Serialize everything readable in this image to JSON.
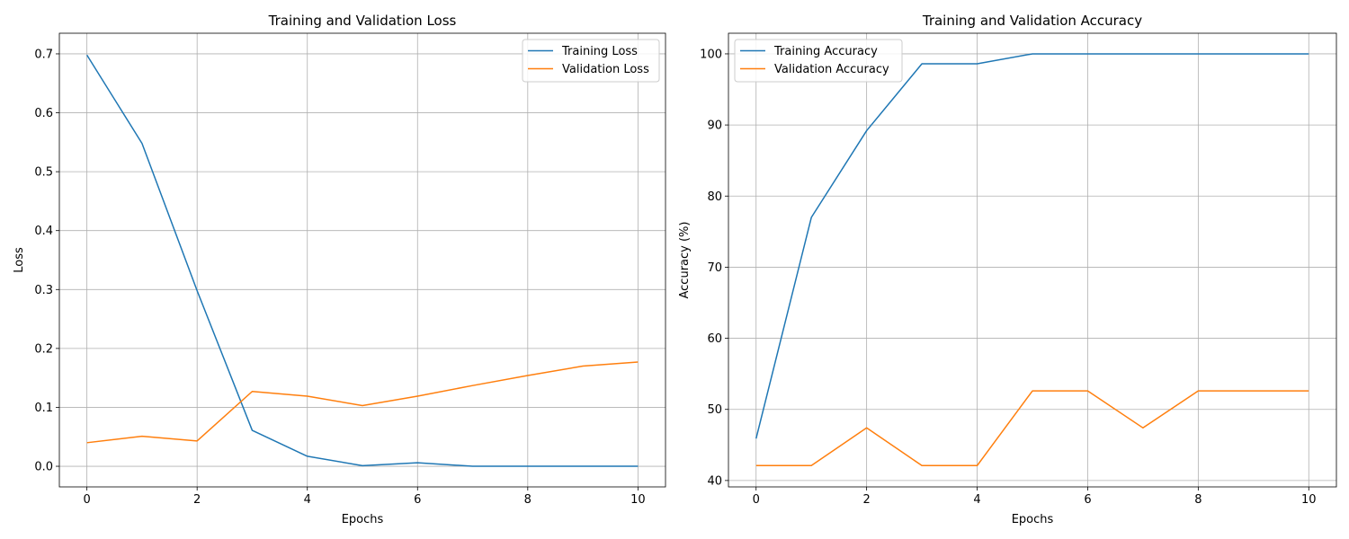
{
  "chart_data": [
    {
      "type": "line",
      "title": "Training and Validation Loss",
      "xlabel": "Epochs",
      "ylabel": "Loss",
      "xlim": [
        -0.5,
        10.5
      ],
      "ylim": [
        -0.035,
        0.735
      ],
      "xticks": [
        0,
        2,
        4,
        6,
        8,
        10
      ],
      "xtick_labels": [
        "0",
        "2",
        "4",
        "6",
        "8",
        "10"
      ],
      "yticks": [
        0.0,
        0.1,
        0.2,
        0.3,
        0.4,
        0.5,
        0.6,
        0.7
      ],
      "ytick_labels": [
        "0.0",
        "0.1",
        "0.2",
        "0.3",
        "0.4",
        "0.5",
        "0.6",
        "0.7"
      ],
      "grid": true,
      "legend_position": "top-right",
      "x": [
        0,
        1,
        2,
        3,
        4,
        5,
        6,
        7,
        8,
        9,
        10
      ],
      "series": [
        {
          "name": "Training Loss",
          "color": "#1f77b4",
          "values": [
            0.698,
            0.548,
            0.298,
            0.061,
            0.017,
            0.001,
            0.006,
            0.0,
            0.0,
            0.0,
            0.0
          ]
        },
        {
          "name": "Validation Loss",
          "color": "#ff7f0e",
          "values": [
            0.04,
            0.051,
            0.043,
            0.127,
            0.119,
            0.103,
            0.119,
            0.137,
            0.154,
            0.17,
            0.177
          ]
        }
      ]
    },
    {
      "type": "line",
      "title": "Training and Validation Accuracy",
      "xlabel": "Epochs",
      "ylabel": "Accuracy (%)",
      "xlim": [
        -0.5,
        10.5
      ],
      "ylim": [
        39.1,
        102.9
      ],
      "xticks": [
        0,
        2,
        4,
        6,
        8,
        10
      ],
      "xtick_labels": [
        "0",
        "2",
        "4",
        "6",
        "8",
        "10"
      ],
      "yticks": [
        40,
        50,
        60,
        70,
        80,
        90,
        100
      ],
      "ytick_labels": [
        "40",
        "50",
        "60",
        "70",
        "80",
        "90",
        "100"
      ],
      "grid": true,
      "legend_position": "top-left",
      "x": [
        0,
        1,
        2,
        3,
        4,
        5,
        6,
        7,
        8,
        9,
        10
      ],
      "series": [
        {
          "name": "Training Accuracy",
          "color": "#1f77b4",
          "values": [
            45.9,
            77.0,
            89.2,
            98.6,
            98.6,
            100.0,
            100.0,
            100.0,
            100.0,
            100.0,
            100.0
          ]
        },
        {
          "name": "Validation Accuracy",
          "color": "#ff7f0e",
          "values": [
            42.1,
            42.1,
            47.4,
            42.1,
            42.1,
            52.6,
            52.6,
            47.4,
            52.6,
            52.6,
            52.6
          ]
        }
      ]
    }
  ]
}
